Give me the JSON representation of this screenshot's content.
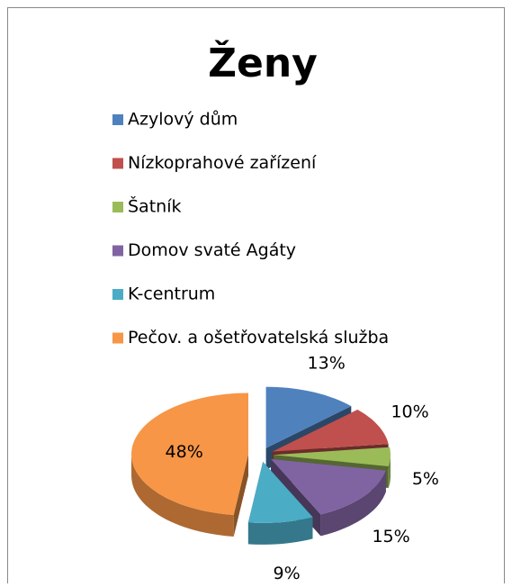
{
  "chart_data": {
    "type": "pie",
    "title": "Ženy",
    "categories": [
      "Azylový dům",
      "Nízkoprahové zařízení",
      "Šatník",
      "Domov svaté Agáty",
      "K-centrum",
      "Pečov. a ošetřovatelská služba"
    ],
    "values": [
      13,
      10,
      5,
      15,
      9,
      48
    ],
    "value_labels": [
      "13%",
      "10%",
      "5%",
      "15%",
      "9%",
      "48%"
    ],
    "colors": [
      "#4f81bd",
      "#c0504d",
      "#9bbb59",
      "#8064a2",
      "#4bacc6",
      "#f79646"
    ],
    "legend": "top"
  }
}
